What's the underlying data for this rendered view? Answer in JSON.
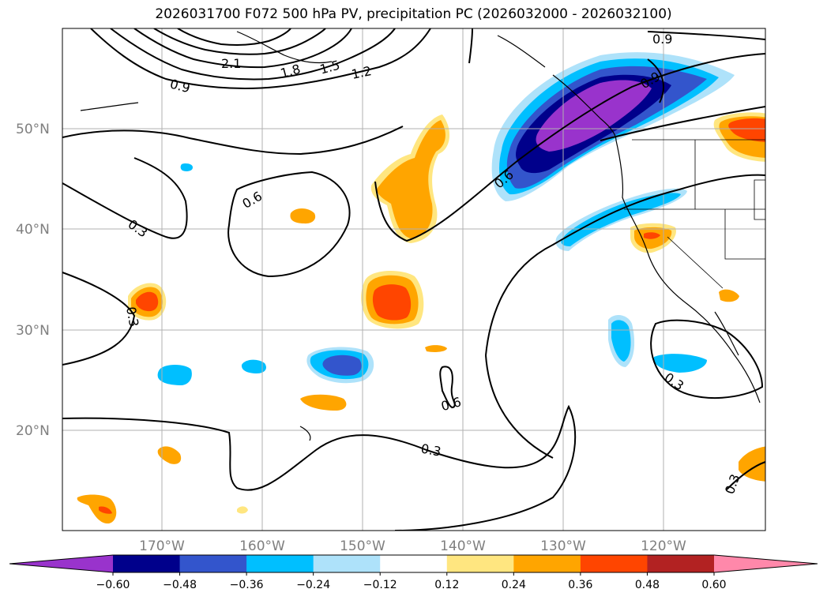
{
  "title": "2026031700 F072 500 hPa PV, precipitation PC (2026032000 - 2026032100)",
  "lat_labels": [
    "50°N",
    "40°N",
    "30°N",
    "20°N"
  ],
  "lon_labels": [
    "170°W",
    "160°W",
    "150°W",
    "140°W",
    "130°W",
    "120°W"
  ],
  "contour_labels": [
    "2.1",
    "1.8",
    "1.5",
    "1.2",
    "0.9",
    "0.9",
    "0.9",
    "0.6",
    "0.6",
    "0.6",
    "0.3",
    "0.3",
    "0.3",
    "0.3",
    "0.3"
  ],
  "colorbar": {
    "ticks": [
      "−0.60",
      "−0.48",
      "−0.36",
      "−0.24",
      "−0.12",
      "0.12",
      "0.24",
      "0.36",
      "0.48",
      "0.60"
    ],
    "colors": [
      "#9933cc",
      "#00008b",
      "#3355cc",
      "#00bfff",
      "#aee2fa",
      "#ffffff",
      "#ffe680",
      "#ffa500",
      "#ff4500",
      "#b22222",
      "#ff88aa"
    ]
  }
}
